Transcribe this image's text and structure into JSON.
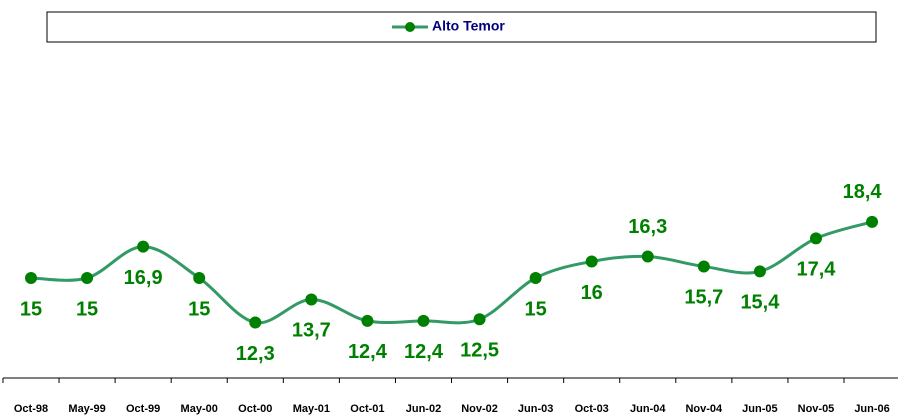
{
  "chart_data": {
    "type": "line",
    "categories": [
      "Oct-98",
      "May-99",
      "Oct-99",
      "May-00",
      "Oct-00",
      "May-01",
      "Oct-01",
      "Jun-02",
      "Nov-02",
      "Jun-03",
      "Oct-03",
      "Jun-04",
      "Nov-04",
      "Jun-05",
      "Nov-05",
      "Jun-06"
    ],
    "series": [
      {
        "name": "Alto Temor",
        "color": "#339966",
        "marker_color": "#008000",
        "values": [
          15,
          15,
          16.9,
          15,
          12.3,
          13.7,
          12.4,
          12.4,
          12.5,
          15,
          16,
          16.3,
          15.7,
          15.4,
          17.4,
          18.4
        ],
        "value_labels": [
          "15",
          "15",
          "16,9",
          "15",
          "12,3",
          "13,7",
          "12,4",
          "12,4",
          "12,5",
          "15",
          "16",
          "16,3",
          "15,7",
          "15,4",
          "17,4",
          "18,4"
        ]
      }
    ],
    "ylim": [
      10,
      20
    ],
    "legend": "top"
  }
}
